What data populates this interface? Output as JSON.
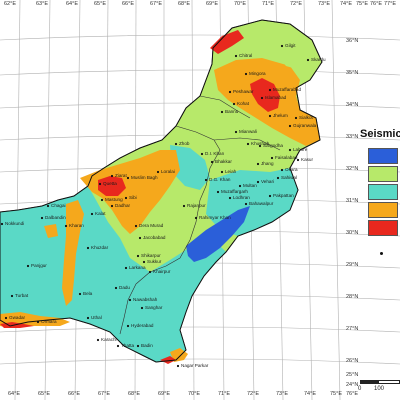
{
  "map": {
    "longitude_ticks_top": [
      "62°E",
      "63°E",
      "64°E",
      "65°E",
      "66°E",
      "67°E",
      "68°E",
      "69°E",
      "70°E",
      "71°E",
      "72°E",
      "73°E",
      "74°E",
      "75°E",
      "76°E",
      "77°E"
    ],
    "longitude_ticks_bottom": [
      "64°E",
      "65°E",
      "66°E",
      "67°E",
      "68°E",
      "69°E",
      "70°E",
      "71°E",
      "72°E",
      "73°E",
      "74°E",
      "75°E",
      "76°E"
    ],
    "latitude_ticks_right": [
      "36°N",
      "35°N",
      "34°N",
      "33°N",
      "32°N",
      "31°N",
      "30°N",
      "29°N",
      "28°N",
      "27°N",
      "26°N",
      "25°N",
      "24°N"
    ],
    "colors": {
      "blue": "#2b5fd9",
      "cyan": "#5ad9c6",
      "light_green": "#b7e96a",
      "orange": "#f5a81c",
      "red": "#e8281e",
      "water": "#ffffff"
    },
    "cities": [
      {
        "name": "Gilgit"
      },
      {
        "name": "Chitral"
      },
      {
        "name": "Skardu"
      },
      {
        "name": "Mingora"
      },
      {
        "name": "Peshawar"
      },
      {
        "name": "Islamabad"
      },
      {
        "name": "Muzaffarabad"
      },
      {
        "name": "Kohat"
      },
      {
        "name": "Bannu"
      },
      {
        "name": "Mianwali"
      },
      {
        "name": "Sargodha"
      },
      {
        "name": "Gujranwala"
      },
      {
        "name": "Sialkot"
      },
      {
        "name": "Lahore"
      },
      {
        "name": "Faisalabad"
      },
      {
        "name": "Jhang"
      },
      {
        "name": "Okara"
      },
      {
        "name": "Sahiwal"
      },
      {
        "name": "Multan"
      },
      {
        "name": "Bahawalpur"
      },
      {
        "name": "Rahimyar Khan"
      },
      {
        "name": "D.I. Khan"
      },
      {
        "name": "D.G. Khan"
      },
      {
        "name": "Muzaffargarh"
      },
      {
        "name": "Zhob"
      },
      {
        "name": "Loralai"
      },
      {
        "name": "Muslim Bagh"
      },
      {
        "name": "Quetta"
      },
      {
        "name": "Ziarat"
      },
      {
        "name": "Mastung"
      },
      {
        "name": "Kalat"
      },
      {
        "name": "Dera Murad"
      },
      {
        "name": "Dadhar"
      },
      {
        "name": "Sibi"
      },
      {
        "name": "Chagai"
      },
      {
        "name": "Dalbandin"
      },
      {
        "name": "Nokkundi"
      },
      {
        "name": "Kharan"
      },
      {
        "name": "Khuzdar"
      },
      {
        "name": "Panjgur"
      },
      {
        "name": "Turbat"
      },
      {
        "name": "Gwadar"
      },
      {
        "name": "Ormara"
      },
      {
        "name": "Bela"
      },
      {
        "name": "Uthal"
      },
      {
        "name": "Karachi"
      },
      {
        "name": "Thatta"
      },
      {
        "name": "Badin"
      },
      {
        "name": "Hyderabad"
      },
      {
        "name": "Nawabshah"
      },
      {
        "name": "Sanghar"
      },
      {
        "name": "Dadu"
      },
      {
        "name": "Larkana"
      },
      {
        "name": "Sukkur"
      },
      {
        "name": "Shikarpur"
      },
      {
        "name": "Khairpur"
      },
      {
        "name": "Jacobabad"
      },
      {
        "name": "Nagar Parkar"
      },
      {
        "name": "Rajanpur"
      },
      {
        "name": "Leiah"
      },
      {
        "name": "Bhakkar"
      },
      {
        "name": "Khushab"
      },
      {
        "name": "Jhelum"
      },
      {
        "name": "Kasur"
      },
      {
        "name": "Pakpattan"
      },
      {
        "name": "Vehari"
      },
      {
        "name": "Lodhran"
      }
    ]
  },
  "legend": {
    "title": "Seismic"
  },
  "scale": {
    "labels": [
      "0",
      "100"
    ]
  }
}
